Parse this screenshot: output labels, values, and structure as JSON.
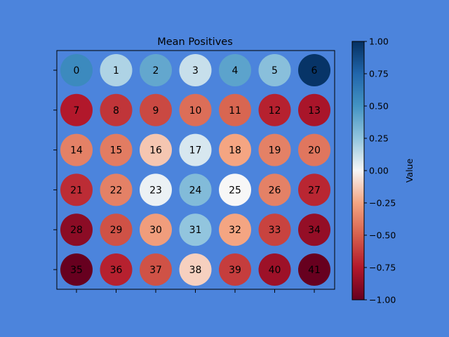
{
  "chart_data": {
    "type": "heatmap",
    "title": "Mean Positives",
    "grid": {
      "rows": 6,
      "cols": 7
    },
    "labels": [
      [
        0,
        1,
        2,
        3,
        4,
        5,
        6
      ],
      [
        7,
        8,
        9,
        10,
        11,
        12,
        13
      ],
      [
        14,
        15,
        16,
        17,
        18,
        19,
        20
      ],
      [
        21,
        22,
        23,
        24,
        25,
        26,
        27
      ],
      [
        28,
        29,
        30,
        31,
        32,
        33,
        34
      ],
      [
        35,
        36,
        37,
        38,
        39,
        40,
        41
      ]
    ],
    "values": [
      [
        0.55,
        0.18,
        0.4,
        0.12,
        0.42,
        0.28,
        0.98
      ],
      [
        -0.75,
        -0.65,
        -0.58,
        -0.45,
        -0.48,
        -0.72,
        -0.78
      ],
      [
        -0.38,
        -0.4,
        -0.15,
        0.08,
        -0.25,
        -0.38,
        -0.42
      ],
      [
        -0.68,
        -0.38,
        0.03,
        0.3,
        0.0,
        -0.38,
        -0.7
      ],
      [
        -0.88,
        -0.55,
        -0.28,
        0.25,
        -0.25,
        -0.6,
        -0.85
      ],
      [
        -1.0,
        -0.72,
        -0.55,
        -0.12,
        -0.62,
        -0.82,
        -1.0
      ]
    ],
    "colorbar": {
      "label": "Value",
      "range": [
        -1.0,
        1.0
      ],
      "colormap": "RdBu",
      "ticks": [
        "1.00",
        "0.75",
        "0.50",
        "0.25",
        "0.00",
        "−0.25",
        "−0.50",
        "−0.75",
        "−1.00"
      ]
    },
    "background_color": "#4c84dc",
    "xlabel": "",
    "ylabel": ""
  }
}
